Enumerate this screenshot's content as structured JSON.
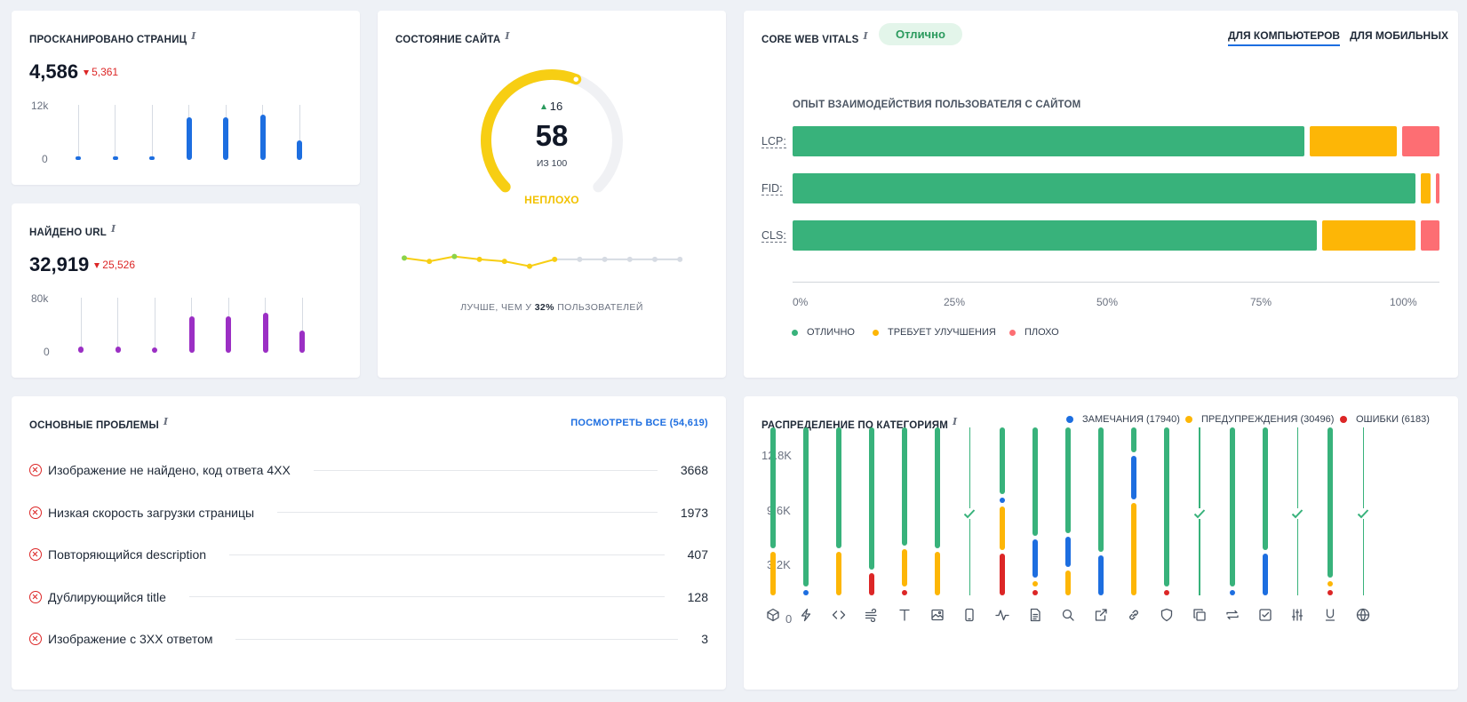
{
  "crawled": {
    "title": "Просканировано страниц",
    "value": "4,586",
    "delta": "5,361",
    "y_max_label": "12k",
    "y_min_label": "0",
    "bar_color": "#1d6ee0",
    "bars": [
      0.05,
      0.05,
      0.05,
      0.78,
      0.78,
      0.83,
      0.36
    ]
  },
  "urls": {
    "title": "Найдено URL",
    "value": "32,919",
    "delta": "25,526",
    "y_max_label": "80k",
    "y_min_label": "0",
    "bar_color": "#9b2fc4",
    "bars": [
      0.12,
      0.12,
      0.1,
      0.66,
      0.66,
      0.72,
      0.4
    ]
  },
  "health": {
    "title": "Состояние сайта",
    "score": "58",
    "of_label": "из 100",
    "delta": "16",
    "status": "неплохо",
    "gauge_fraction": 0.58,
    "better_prefix": "лучше, чем у",
    "better_pct": "32%",
    "better_suffix": "пользователей",
    "history": [
      0.62,
      0.45,
      0.7,
      0.55,
      0.45,
      0.2,
      0.55
    ]
  },
  "cwv": {
    "title": "Core Web Vitals",
    "badge": "Отлично",
    "tabs": [
      "Для компьютеров",
      "Для мобильных"
    ],
    "subtitle": "Опыт взаимодействия пользователя с сайтом",
    "rows": [
      {
        "label": "LCP:",
        "good": 82,
        "ni": 14,
        "poor": 6
      },
      {
        "label": "FID:",
        "good": 99.5,
        "ni": 1.5,
        "poor": 0.6
      },
      {
        "label": "CLS:",
        "good": 84,
        "ni": 15,
        "poor": 3
      }
    ],
    "axis": [
      "0%",
      "25%",
      "50%",
      "75%",
      "100%"
    ],
    "legend": [
      "Отлично",
      "Требует улучшения",
      "Плохо"
    ],
    "colors": {
      "good": "#38b27b",
      "ni": "#fdb606",
      "poor": "#fd6e73"
    }
  },
  "issues": {
    "title": "Основные проблемы",
    "view_all": "Посмотреть все (54,619)",
    "items": [
      {
        "text": "Изображение не найдено, код ответа 4XX",
        "count": "3668"
      },
      {
        "text": "Низкая скорость загрузки страницы",
        "count": "1973"
      },
      {
        "text": "Повторяющийся description",
        "count": "407"
      },
      {
        "text": "Дублирующийся title",
        "count": "128"
      },
      {
        "text": "Изображение с 3XX ответом",
        "count": "3"
      }
    ]
  },
  "categories": {
    "title": "Распределение по категориям",
    "legend": [
      {
        "label": "Замечания (17940)",
        "color": "#1d6ee0"
      },
      {
        "label": "Предупреждения (30496)",
        "color": "#fdb606"
      },
      {
        "label": "Ошибки (6183)",
        "color": "#dc2626"
      }
    ],
    "y_labels": [
      "12.8K",
      "9.6K",
      "3.2K",
      "0"
    ],
    "icons": [
      "cube-icon",
      "lightning-icon",
      "code-icon",
      "wind-icon",
      "text-icon",
      "image-icon",
      "mobile-icon",
      "pulse-icon",
      "document-icon",
      "search-icon",
      "external-link-icon",
      "link-icon",
      "shield-icon",
      "copy-icon",
      "repeat-icon",
      "checkbox-icon",
      "sliders-icon",
      "underline-icon",
      "globe-icon"
    ],
    "columns": [
      {
        "notes": 0,
        "warn": 0.26,
        "err": 0,
        "ok": false
      },
      {
        "notes": 0.02,
        "warn": 0,
        "err": 0,
        "ok": false
      },
      {
        "notes": 0,
        "warn": 0.26,
        "err": 0,
        "ok": false
      },
      {
        "notes": 0,
        "warn": 0,
        "err": 0.13,
        "ok": false
      },
      {
        "notes": 0,
        "warn": 0.22,
        "err": 0.02,
        "ok": false
      },
      {
        "notes": 0,
        "warn": 0.26,
        "err": 0,
        "ok": false
      },
      {
        "notes": 0,
        "warn": 0,
        "err": 0,
        "ok": true
      },
      {
        "notes": 0.02,
        "warn": 0.26,
        "err": 0.25,
        "ok": false
      },
      {
        "notes": 0.23,
        "warn": 0.02,
        "err": 0.02,
        "ok": false
      },
      {
        "notes": 0.18,
        "warn": 0.15,
        "err": 0,
        "ok": false
      },
      {
        "notes": 0.24,
        "warn": 0,
        "err": 0,
        "ok": false
      },
      {
        "notes": 0.26,
        "warn": 0.55,
        "err": 0,
        "ok": false
      },
      {
        "notes": 0,
        "warn": 0,
        "err": 0.02,
        "ok": false
      },
      {
        "notes": 0,
        "warn": 0,
        "err": 0,
        "ok": true
      },
      {
        "notes": 0.02,
        "warn": 0,
        "err": 0,
        "ok": false
      },
      {
        "notes": 0.25,
        "warn": 0,
        "err": 0,
        "ok": false
      },
      {
        "notes": 0,
        "warn": 0,
        "err": 0,
        "ok": true
      },
      {
        "notes": 0,
        "warn": 0.02,
        "err": 0.02,
        "ok": false
      },
      {
        "notes": 0,
        "warn": 0,
        "err": 0,
        "ok": true
      }
    ]
  }
}
